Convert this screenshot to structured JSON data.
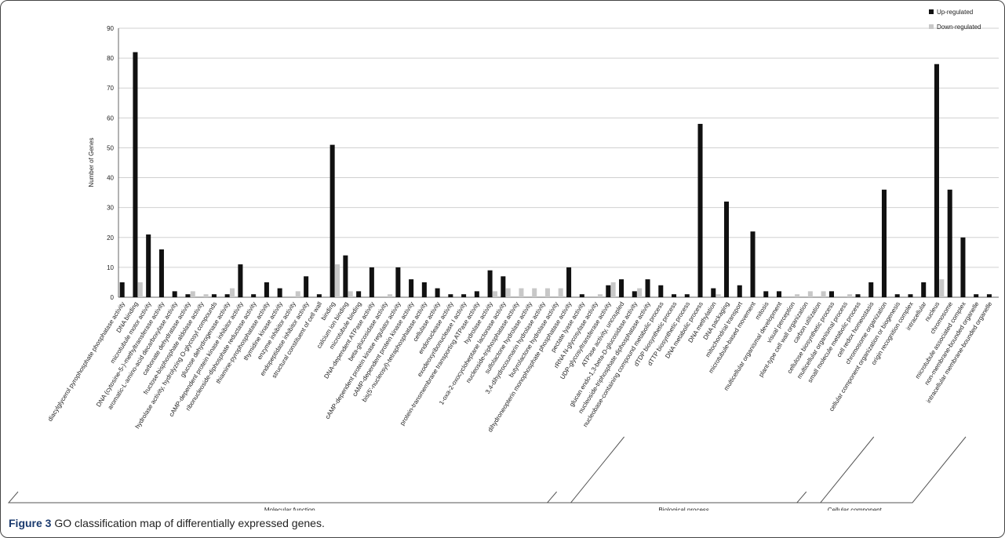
{
  "chart_data": {
    "type": "bar",
    "ylabel": "Number of Genes",
    "ylim": [
      0,
      90
    ],
    "yticks": [
      0,
      10,
      20,
      30,
      40,
      50,
      60,
      70,
      80,
      90
    ],
    "grid": true,
    "groups": [
      {
        "name": "Molecular function",
        "categories": [
          "diacylglycerol pyrophosphate phosphatase activity",
          "DNA binding",
          "microtubule motor activity",
          "DNA (cytosine-5-)-methyltransferase activity",
          "aromatic-L-amino-acid decarboxylase activity",
          "carbonate dehydratase activity",
          "fructose-bisphosphate aldolase activity",
          "hydrolase activity, hydrolyzing O-glycosyl compounds",
          "glucose dehydrogenase activity",
          "cAMP-dependent protein kinase inhibitor activity",
          "ribonucleoside-diphosphate reductase activity",
          "thiamine-pyrophosphatase activity",
          "thymidine kinase activity",
          "enzyme inhibitor activity",
          "endopeptidase inhibitor activity",
          "structural constituent of cell wall",
          "binding",
          "calcium ion binding",
          "microtubule binding",
          "DNA-dependent ATPase activity",
          "beta-glucosidase activity",
          "cAMP-dependent protein kinase regulator activity",
          "cAMP-dependent protein kinase activity",
          "bis(5'-nucleosyl)-tetraphosphatase activity",
          "cellulase activity",
          "endonuclease activity",
          "exodeoxyribonuclease I activity",
          "protein-transmembrane transporting ATPase activity",
          "hydrolase activity",
          "1-oxa-2-oxocycloheptane lactonase activity",
          "nucleoside-triphosphatase activity",
          "sulfolactone hydrolase activity",
          "3,4-dihydrocoumarin hydrolase activity",
          "butyrolactone hydrolase activity",
          "dihydroneopterin monophosphate phosphatase activity",
          "pectate lyase activity",
          "rRNA N-glycosylase activity",
          "UDP-glycosyltransferase activity",
          "ATPase activity, uncoupled",
          "glucan endo-1,3-beta-D-glucosidase activity",
          "nucleoside-triphosphate diphosphatase activity"
        ]
      },
      {
        "name": "Biological process",
        "categories": [
          "nucleobase-containing compound metabolic process",
          "dTDP biosynthetic process",
          "dTTP biosynthetic process",
          "DNA metabolic process",
          "DNA methylation",
          "DNA packaging",
          "mitochondrial transport",
          "microtubule-based movement",
          "mitosis",
          "multicellular organismal development",
          "visual perception",
          "plant-type cell wall organization",
          "carbon utilization",
          "cellulose biosynthetic process",
          "multicellular organismal process",
          "small molecule metabolic process",
          "cell redox homeostasis",
          "chromosome organization",
          "cellular component organization or biogenesis"
        ]
      },
      {
        "name": "Cellular component",
        "categories": [
          "origin recognition complex",
          "intracellular",
          "nucleus",
          "chromosome",
          "microtubule associated complex",
          "non-membrane-bounded organelle",
          "intracellular membrane-bounded organelle"
        ]
      }
    ],
    "series": [
      {
        "name": "Up-regulated",
        "color": "#111111",
        "values": [
          5,
          82,
          21,
          16,
          2,
          1,
          0,
          1,
          1,
          11,
          1,
          5,
          3,
          0,
          7,
          1,
          51,
          14,
          2,
          10,
          0,
          10,
          6,
          5,
          3,
          1,
          1,
          2,
          9,
          7,
          0,
          0,
          0,
          0,
          10,
          1,
          0,
          4,
          6,
          2,
          6,
          4,
          1,
          1,
          58,
          3,
          32,
          4,
          22,
          2,
          2,
          0,
          0,
          0,
          2,
          0,
          1,
          5,
          36,
          1,
          1,
          5,
          78,
          36,
          20,
          1,
          1
        ]
      },
      {
        "name": "Down-regulated",
        "color": "#c8c8c8",
        "values": [
          0,
          5,
          0,
          0,
          0,
          2,
          1,
          0,
          3,
          0,
          0,
          0,
          0,
          2,
          0,
          0,
          11,
          2,
          0,
          0,
          1,
          0,
          0,
          0,
          0,
          0,
          0,
          0,
          2,
          3,
          3,
          3,
          3,
          3,
          0,
          0,
          1,
          5,
          0,
          3,
          0,
          0,
          0,
          0,
          0,
          1,
          0,
          0,
          0,
          0,
          0,
          1,
          2,
          2,
          0,
          1,
          0,
          0,
          0,
          0,
          0,
          0,
          6,
          0,
          0,
          0,
          0
        ]
      }
    ]
  },
  "caption": {
    "label": "Figure 3",
    "text": "GO classification map of differentially expressed genes."
  }
}
